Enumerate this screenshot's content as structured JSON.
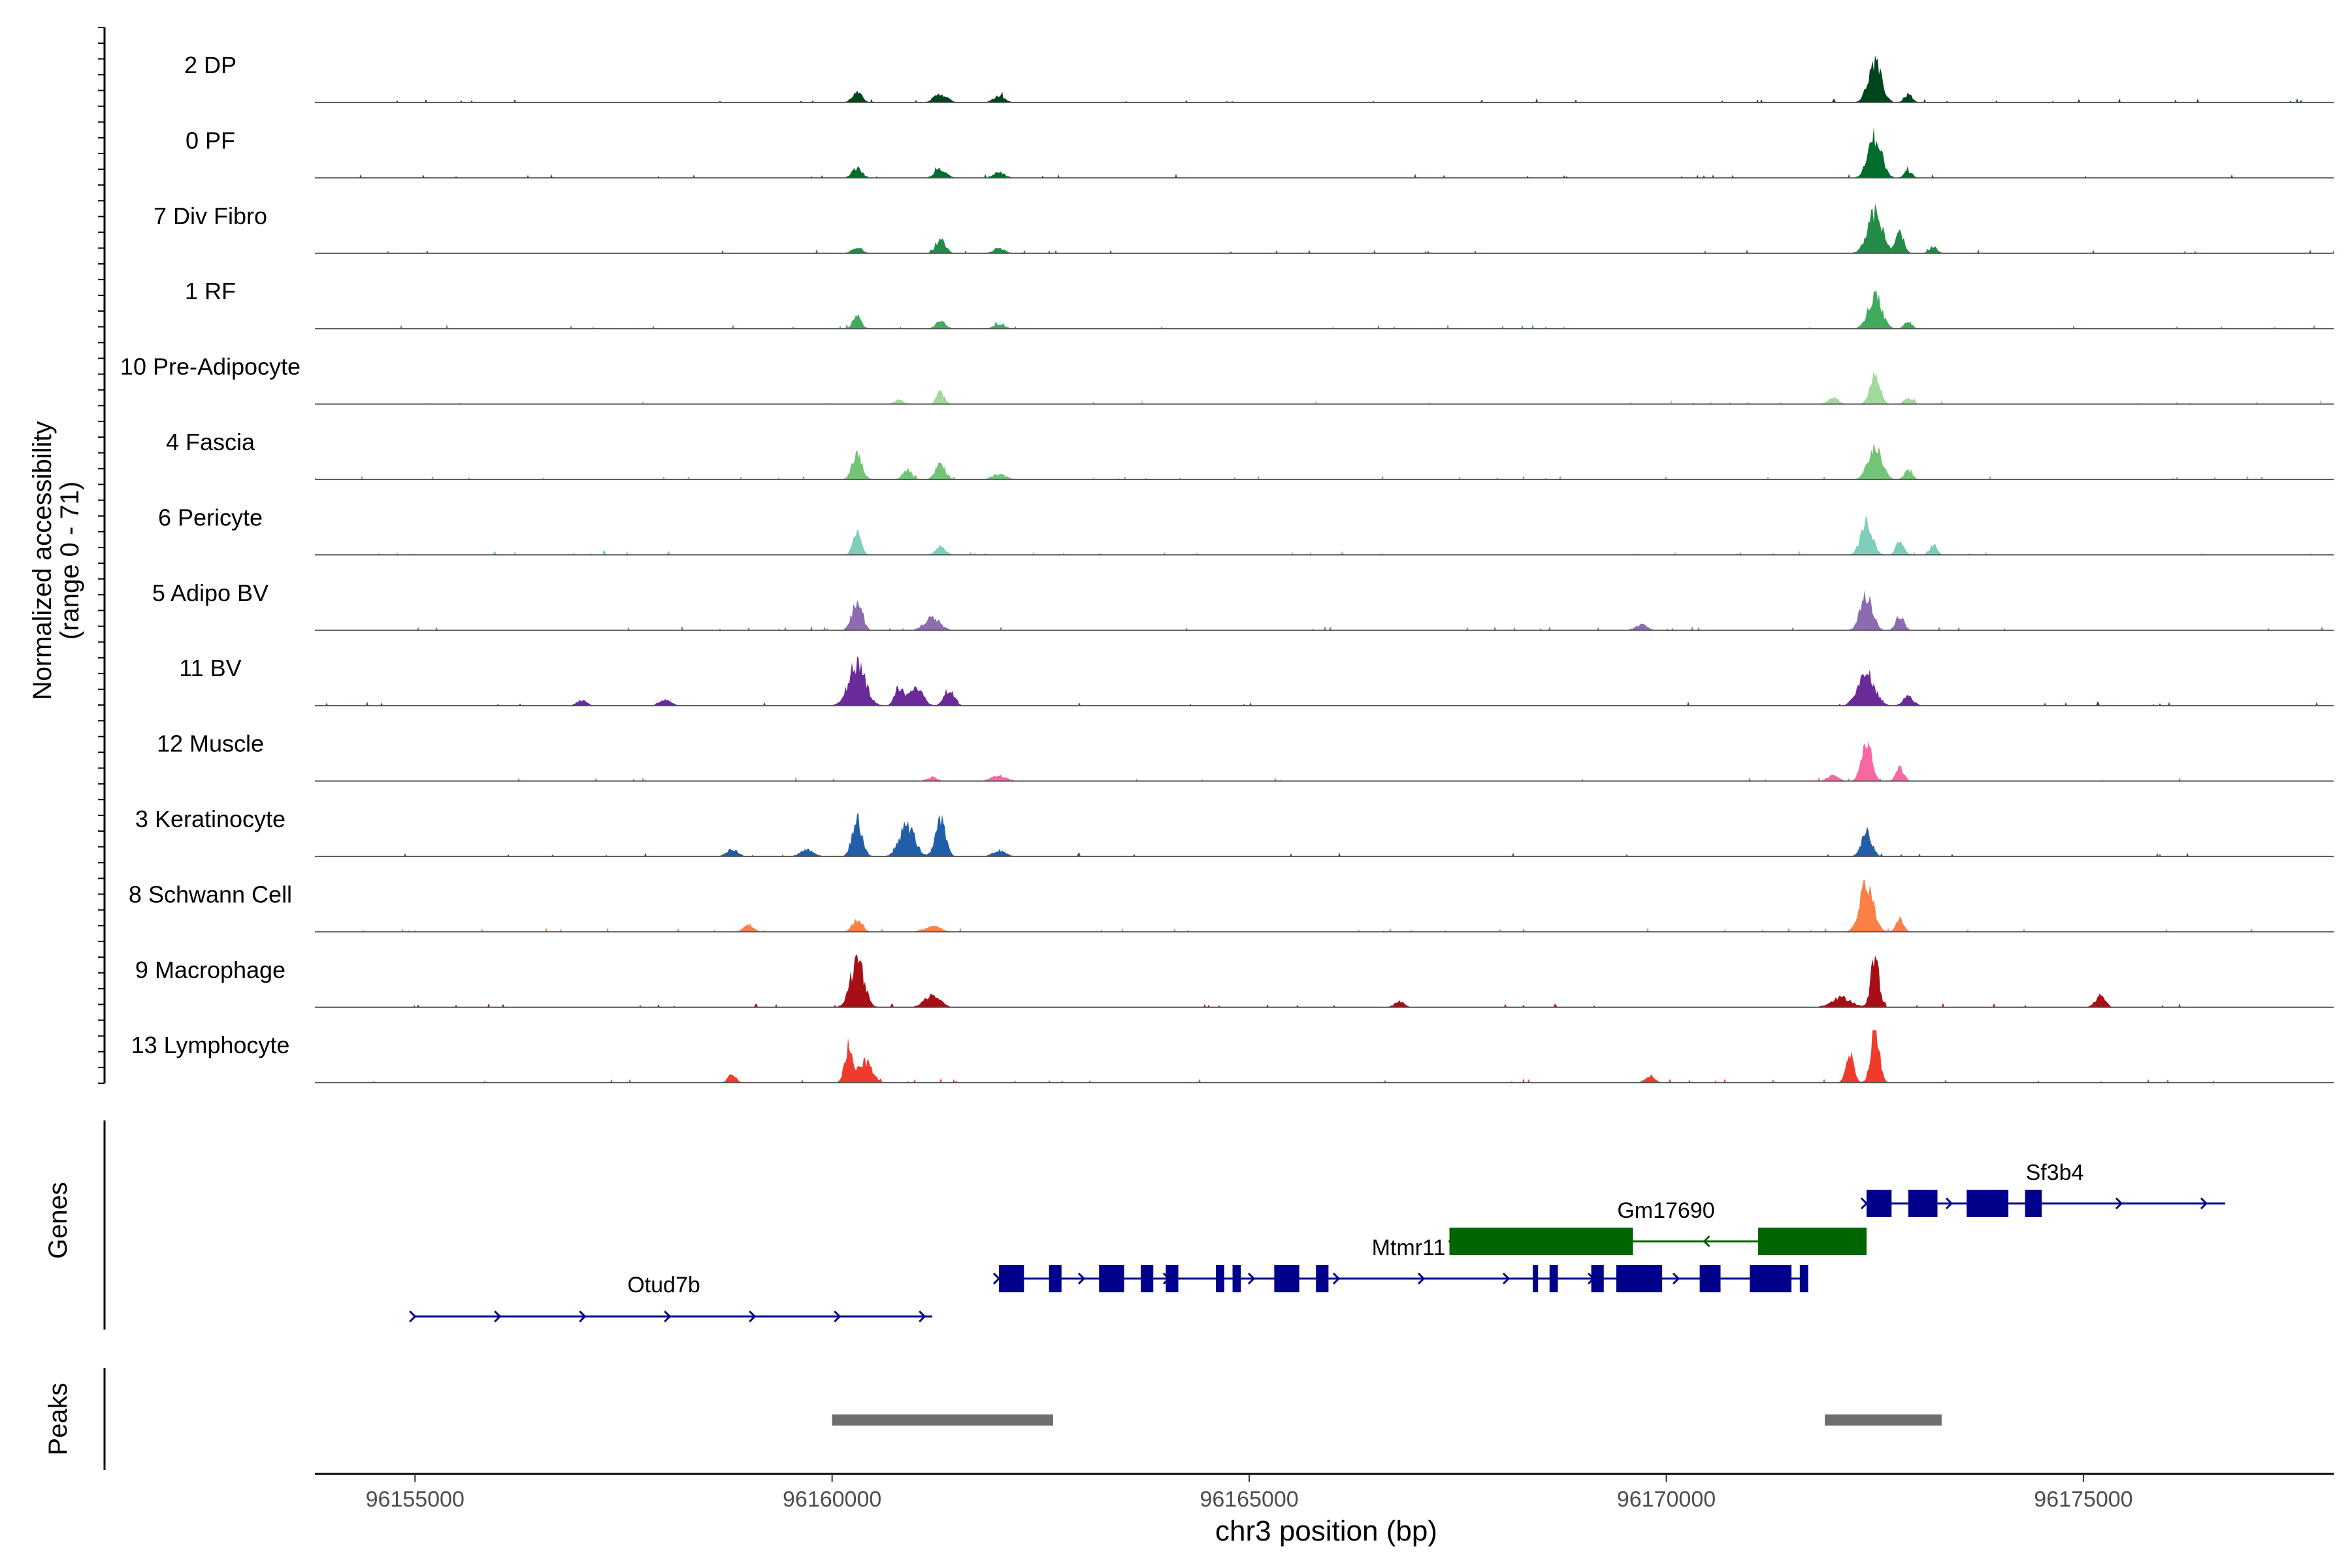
{
  "chart_data": {
    "type": "area",
    "title": "",
    "chromosome": "chr3",
    "xlabel": "chr3 position (bp)",
    "ylabel_line1": "Normalized accessibility",
    "ylabel_line2": "(range 0 - 71)",
    "y_range": [
      0,
      71
    ],
    "xlim": [
      96153800,
      96178000
    ],
    "x_ticks": [
      96155000,
      96160000,
      96165000,
      96170000,
      96175000
    ],
    "x_tick_labels": [
      "96155000",
      "96160000",
      "96165000",
      "96170000",
      "96175000"
    ],
    "tracks": [
      {
        "label": "2 DP",
        "color": "#00441b",
        "peaks": [
          [
            96160300,
            14,
            60
          ],
          [
            96161300,
            12,
            80
          ],
          [
            96162000,
            9,
            70
          ],
          [
            96172500,
            55,
            80
          ],
          [
            96172900,
            12,
            40
          ]
        ]
      },
      {
        "label": "0 PF",
        "color": "#006d2c",
        "peaks": [
          [
            96160300,
            14,
            60
          ],
          [
            96161300,
            12,
            70
          ],
          [
            96162000,
            8,
            70
          ],
          [
            96172500,
            60,
            80
          ],
          [
            96172900,
            10,
            40
          ]
        ]
      },
      {
        "label": "7 Div Fibro",
        "color": "#238b45",
        "peaks": [
          [
            96160300,
            9,
            60
          ],
          [
            96161300,
            18,
            60
          ],
          [
            96162000,
            7,
            70
          ],
          [
            96172500,
            58,
            90
          ],
          [
            96172800,
            30,
            40
          ],
          [
            96173200,
            10,
            30
          ]
        ]
      },
      {
        "label": "1 RF",
        "color": "#41ab5d",
        "peaks": [
          [
            96160300,
            20,
            50
          ],
          [
            96161300,
            10,
            60
          ],
          [
            96162000,
            6,
            70
          ],
          [
            96172500,
            48,
            80
          ],
          [
            96172900,
            10,
            40
          ]
        ]
      },
      {
        "label": "10 Pre-Adipocyte",
        "color": "#a1d99b",
        "peaks": [
          [
            96161300,
            18,
            40
          ],
          [
            96160800,
            6,
            60
          ],
          [
            96172500,
            40,
            60
          ],
          [
            96172000,
            10,
            60
          ],
          [
            96172900,
            8,
            50
          ]
        ]
      },
      {
        "label": "4 Fascia",
        "color": "#74c476",
        "peaks": [
          [
            96160300,
            35,
            60
          ],
          [
            96160900,
            16,
            50
          ],
          [
            96161300,
            22,
            60
          ],
          [
            96162000,
            8,
            80
          ],
          [
            96172500,
            48,
            80
          ],
          [
            96172900,
            14,
            40
          ]
        ]
      },
      {
        "label": "6 Pericyte",
        "color": "#7fcdbb",
        "peaks": [
          [
            96160300,
            30,
            50
          ],
          [
            96161300,
            12,
            60
          ],
          [
            96172400,
            45,
            70
          ],
          [
            96172800,
            20,
            40
          ],
          [
            96173200,
            14,
            30
          ]
        ]
      },
      {
        "label": "5 Adipo BV",
        "color": "#8c6bb1",
        "peaks": [
          [
            96160300,
            42,
            60
          ],
          [
            96161200,
            18,
            90
          ],
          [
            96172400,
            52,
            70
          ],
          [
            96172800,
            22,
            40
          ],
          [
            96169700,
            8,
            70
          ]
        ]
      },
      {
        "label": "11 BV",
        "color": "#6a2b99",
        "peaks": [
          [
            96160300,
            60,
            100
          ],
          [
            96160800,
            25,
            50
          ],
          [
            96161000,
            28,
            80
          ],
          [
            96161400,
            24,
            60
          ],
          [
            96172400,
            45,
            100
          ],
          [
            96172900,
            14,
            60
          ],
          [
            96157000,
            8,
            60
          ],
          [
            96158000,
            9,
            70
          ]
        ]
      },
      {
        "label": "12 Muscle",
        "color": "#f768a1",
        "peaks": [
          [
            96172400,
            55,
            60
          ],
          [
            96172800,
            18,
            40
          ],
          [
            96172000,
            10,
            60
          ],
          [
            96162000,
            8,
            90
          ],
          [
            96161200,
            6,
            60
          ]
        ]
      },
      {
        "label": "3 Keratinocyte",
        "color": "#225ea8",
        "peaks": [
          [
            96160300,
            52,
            60
          ],
          [
            96160900,
            45,
            90
          ],
          [
            96161300,
            50,
            60
          ],
          [
            96159700,
            10,
            80
          ],
          [
            96162000,
            8,
            80
          ],
          [
            96172400,
            38,
            60
          ],
          [
            96158800,
            10,
            70
          ]
        ]
      },
      {
        "label": "8 Schwann Cell",
        "color": "#fb8048",
        "peaks": [
          [
            96160300,
            16,
            60
          ],
          [
            96172400,
            66,
            80
          ],
          [
            96172800,
            18,
            40
          ],
          [
            96159000,
            10,
            60
          ],
          [
            96161200,
            8,
            100
          ]
        ]
      },
      {
        "label": "9 Macrophage",
        "color": "#a50f15",
        "peaks": [
          [
            96160300,
            68,
            80
          ],
          [
            96161200,
            18,
            90
          ],
          [
            96172500,
            75,
            40
          ],
          [
            96172100,
            14,
            120
          ],
          [
            96175200,
            16,
            60
          ],
          [
            96166800,
            8,
            60
          ]
        ]
      },
      {
        "label": "13 Lymphocyte",
        "color": "#ef3b2c",
        "peaks": [
          [
            96160200,
            55,
            40
          ],
          [
            96160400,
            30,
            80
          ],
          [
            96172500,
            80,
            50
          ],
          [
            96172200,
            40,
            40
          ],
          [
            96169800,
            8,
            60
          ],
          [
            96158800,
            12,
            30
          ]
        ]
      }
    ],
    "genes_label": "Genes",
    "peaks_label": "Peaks",
    "genes": [
      {
        "name": "Otud7b",
        "strand": "+",
        "color": "#00008b",
        "start": 96155000,
        "end": 96161200,
        "exons": []
      },
      {
        "name": "Mtmr11",
        "strand": "+",
        "color": "#00008b",
        "start": 96162000,
        "end": 96171700,
        "exons": [
          [
            96162000,
            96162300
          ],
          [
            96162600,
            96162750
          ],
          [
            96163200,
            96163500
          ],
          [
            96163700,
            96163850
          ],
          [
            96164000,
            96164150
          ],
          [
            96164600,
            96164700
          ],
          [
            96164800,
            96164900
          ],
          [
            96165300,
            96165600
          ],
          [
            96165800,
            96165950
          ],
          [
            96168400,
            96168450
          ],
          [
            96168600,
            96168700
          ],
          [
            96169100,
            96169250
          ],
          [
            96169400,
            96169950
          ],
          [
            96170400,
            96170650
          ],
          [
            96171000,
            96171500
          ],
          [
            96171600,
            96171700
          ]
        ]
      },
      {
        "name": "Gm17690",
        "strand": "-",
        "color": "#006400",
        "start": 96167400,
        "end": 96172400,
        "exons": [
          [
            96167400,
            96169600
          ],
          [
            96171100,
            96172400
          ]
        ]
      },
      {
        "name": "Sf3b4",
        "strand": "+",
        "color": "#00008b",
        "start": 96172400,
        "end": 96176700,
        "exons": [
          [
            96172400,
            96172700
          ],
          [
            96172900,
            96173250
          ],
          [
            96173600,
            96174100
          ],
          [
            96174300,
            96174500
          ]
        ]
      }
    ],
    "peak_regions": [
      [
        96160000,
        96162650
      ],
      [
        96171900,
        96173300
      ]
    ],
    "peak_region_color": "#6e6e6e"
  }
}
